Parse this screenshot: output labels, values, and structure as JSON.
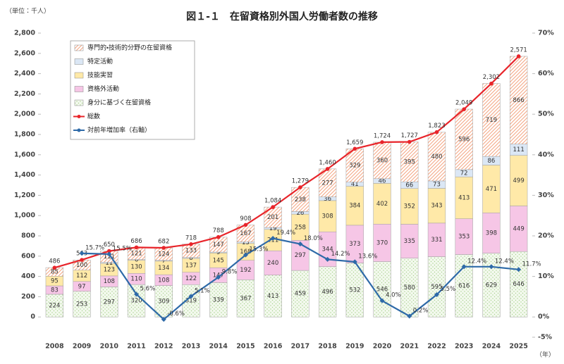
{
  "chart_data": {
    "type": "bar",
    "title": "図１-１　在留資格別外国人労働者数の推移",
    "y_label": "（単位：千人）",
    "x_label": "（年）",
    "categories": [
      "2008",
      "2009",
      "2010",
      "2011",
      "2012",
      "2013",
      "2014",
      "2015",
      "2016",
      "2017",
      "2018",
      "2019",
      "2020",
      "2021",
      "2022",
      "2023",
      "2024",
      "2025"
    ],
    "ylim": [
      -200,
      2800
    ],
    "yticks": [
      0,
      200,
      400,
      600,
      800,
      {
        "value": 1000,
        "label": "1,000"
      },
      {
        "value": 1200,
        "label": "1,200"
      },
      {
        "value": 1400,
        "label": "1,400"
      },
      {
        "value": 1600,
        "label": "1,600"
      },
      {
        "value": 1800,
        "label": "1,800"
      },
      {
        "value": 2000,
        "label": "2,000"
      },
      {
        "value": 2200,
        "label": "2,200"
      },
      {
        "value": 2400,
        "label": "2,400"
      },
      {
        "value": 2600,
        "label": "2,600"
      },
      {
        "value": 2800,
        "label": "2,800"
      }
    ],
    "y2lim": [
      -5,
      70
    ],
    "y2ticks": [
      {
        "value": -5,
        "label": "-5%"
      },
      {
        "value": 0,
        "label": "0%"
      },
      {
        "value": 10,
        "label": "10%"
      },
      {
        "value": 20,
        "label": "20%"
      },
      {
        "value": 30,
        "label": "30%"
      },
      {
        "value": 40,
        "label": "40%"
      },
      {
        "value": 50,
        "label": "50%"
      },
      {
        "value": 60,
        "label": "60%"
      },
      {
        "value": 70,
        "label": "70%"
      }
    ],
    "grid": false,
    "legend": "upper left",
    "series": [
      {
        "name": "身分に基づく在留資格",
        "color": "#a9d18e",
        "pattern": "dots",
        "values": [
          224,
          253,
          297,
          320,
          309,
          319,
          339,
          367,
          413,
          459,
          496,
          532,
          546,
          580,
          595,
          616,
          629,
          646
        ]
      },
      {
        "name": "資格外活動",
        "color": "#f6c6e6",
        "pattern": "plain",
        "values": [
          83,
          97,
          108,
          110,
          108,
          122,
          147,
          192,
          240,
          297,
          344,
          373,
          370,
          335,
          331,
          353,
          398,
          449
        ]
      },
      {
        "name": "技能実習",
        "color": "#ffe9a8",
        "pattern": "plain",
        "values": [
          95,
          112,
          123,
          130,
          134,
          137,
          145,
          168,
          211,
          258,
          308,
          384,
          402,
          352,
          343,
          413,
          471,
          499
        ]
      },
      {
        "name": "特定活動",
        "color": "#dbe7f5",
        "pattern": "plain",
        "values": [
          null,
          null,
          11,
          6,
          7,
          8,
          9,
          13,
          19,
          26,
          36,
          41,
          46,
          66,
          73,
          72,
          86,
          111
        ]
      },
      {
        "name": "専門的・技術的分野の在留資格",
        "color": "#f4a582",
        "pattern": "hatch",
        "values": [
          85,
          100,
          111,
          121,
          124,
          133,
          147,
          167,
          201,
          238,
          277,
          329,
          360,
          395,
          480,
          596,
          719,
          866
        ]
      },
      {
        "name": "総数",
        "type": "line",
        "color": "#e8242a",
        "marker": "circle",
        "values": [
          486,
          563,
          650,
          686,
          682,
          718,
          788,
          908,
          1084,
          1279,
          1460,
          1659,
          1724,
          1727,
          1823,
          2049,
          2302,
          2571
        ],
        "value_labels": [
          "486",
          "563",
          "650",
          "686",
          "682",
          "718",
          "788",
          "908",
          "1,084",
          "1,279",
          "1,460",
          "1,659",
          "1,724",
          "1,727",
          "1,823",
          "2,049",
          "2,302",
          "2,571"
        ]
      },
      {
        "name": "対前年増加率（右軸）",
        "type": "line",
        "axis": "y2",
        "color": "#2e6aa8",
        "marker": "diamond",
        "values": [
          null,
          15.7,
          15.5,
          5.6,
          -0.6,
          5.1,
          9.8,
          15.3,
          19.4,
          18.0,
          14.2,
          13.6,
          4.0,
          0.2,
          5.5,
          12.4,
          12.4,
          11.7
        ],
        "value_labels": [
          null,
          "15.7%",
          "15.5%",
          "5.6%",
          "-0.6%",
          "5.1%",
          "9.8%",
          "15.3%",
          "19.4%",
          "18.0%",
          "14.2%",
          "13.6%",
          "4.0%",
          "0.2%",
          "5.5%",
          "12.4%",
          "12.4%",
          "11.7%"
        ]
      }
    ]
  }
}
